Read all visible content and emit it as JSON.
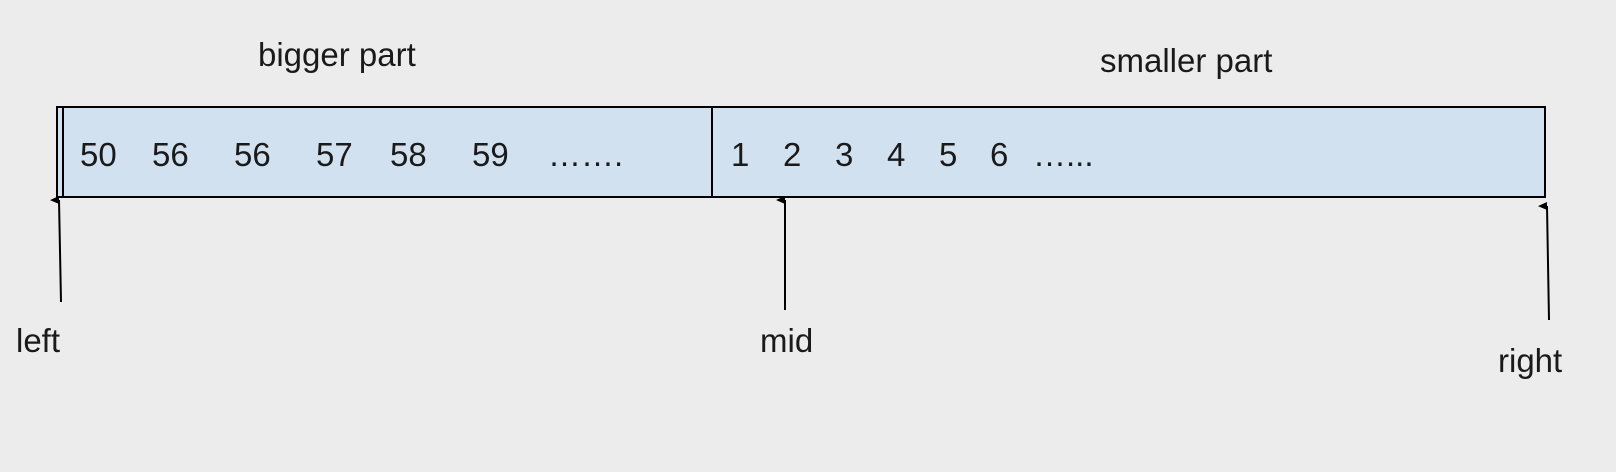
{
  "labels": {
    "bigger_part": "bigger part",
    "smaller_part": "smaller part"
  },
  "array": {
    "bigger_values": [
      "50",
      "56",
      "56",
      "57",
      "58",
      "59",
      "……."
    ],
    "smaller_values": [
      "1",
      "2",
      "3",
      "4",
      "5",
      "6",
      "…..."
    ]
  },
  "pointers": {
    "left": "left",
    "mid": "mid",
    "right": "right"
  },
  "colors": {
    "background": "#ececec",
    "array_fill": "#d2e1f0",
    "stroke": "#000000"
  }
}
